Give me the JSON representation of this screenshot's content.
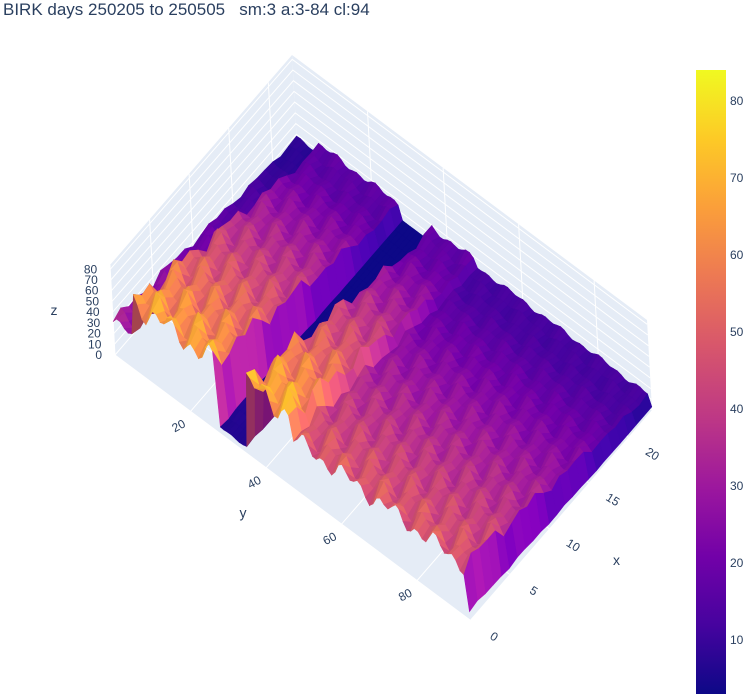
{
  "title": "BIRK days 250205 to 250505   sm:3 a:3-84 cl:94",
  "chart_data": {
    "type": "surface",
    "title": "BIRK days 250205 to 250505   sm:3 a:3-84 cl:94",
    "colorscale": "plasma",
    "x_axis": {
      "title": "x",
      "range": [
        0,
        23
      ],
      "ticks": [
        0,
        5,
        10,
        15,
        20
      ],
      "tick_labels": [
        "0",
        "5",
        "10",
        "15",
        "20"
      ]
    },
    "y_axis": {
      "title": "y",
      "range": [
        0,
        94
      ],
      "ticks": [
        20,
        40,
        60,
        80
      ],
      "tick_labels": [
        "20",
        "40",
        "60",
        "80"
      ]
    },
    "z_axis": {
      "title": "z",
      "range": [
        0,
        84
      ],
      "ticks": [
        0,
        10,
        20,
        30,
        40,
        50,
        60,
        70,
        80
      ],
      "tick_labels": [
        "0",
        "10",
        "20",
        "30",
        "40",
        "50",
        "60",
        "70",
        "80"
      ]
    },
    "colorbar": {
      "range": [
        3,
        84
      ],
      "ticks": [
        10,
        20,
        30,
        40,
        50,
        60,
        70,
        80
      ],
      "tick_labels": [
        "10",
        "20",
        "30",
        "40",
        "50",
        "60",
        "70",
        "80"
      ]
    },
    "ridge_bands": [
      {
        "y_range": [
          0,
          6
        ],
        "peak_z": 38
      },
      {
        "y_range": [
          6,
          28
        ],
        "peak_z": 80
      },
      {
        "y_range": [
          28,
          36
        ],
        "peak_z": 8
      },
      {
        "y_range": [
          36,
          48
        ],
        "peak_z": 84
      },
      {
        "y_range": [
          48,
          94
        ],
        "peak_z": 60
      }
    ]
  }
}
